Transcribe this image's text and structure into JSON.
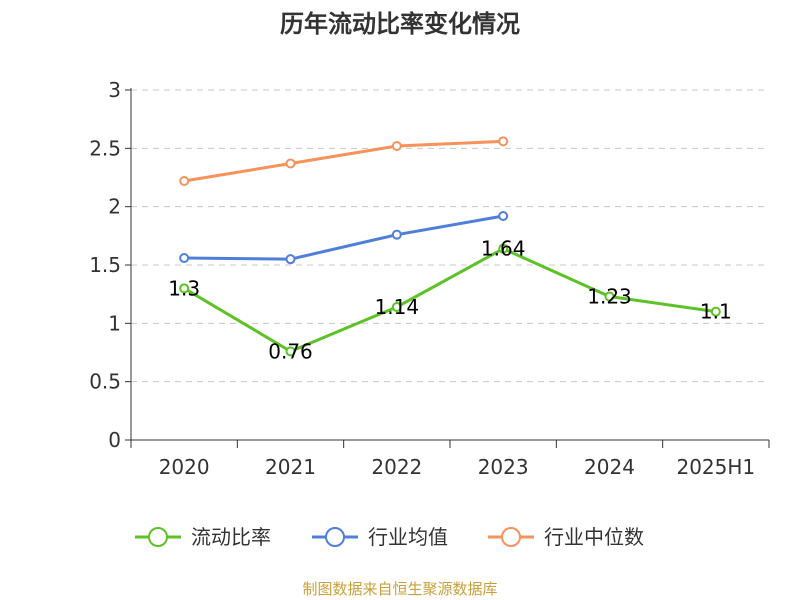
{
  "chart_data": {
    "type": "line",
    "title": "历年流动比率变化情况",
    "categories": [
      "2020",
      "2021",
      "2022",
      "2023",
      "2024",
      "2025H1"
    ],
    "ylim": [
      0,
      3
    ],
    "yticks": [
      "0",
      "0.5",
      "1",
      "1.5",
      "2",
      "2.5",
      "3"
    ],
    "grid": true,
    "legend_position": "bottom",
    "series": [
      {
        "name": "流动比率",
        "color": "#5cc226",
        "values": [
          1.3,
          0.76,
          1.14,
          1.64,
          1.23,
          1.1
        ],
        "data_labels": [
          "1.3",
          "0.76",
          "1.14",
          "1.64",
          "1.23",
          "1.1"
        ]
      },
      {
        "name": "行业均值",
        "color": "#4f7fdb",
        "values": [
          1.56,
          1.55,
          1.76,
          1.92,
          null,
          null
        ]
      },
      {
        "name": "行业中位数",
        "color": "#f7925b",
        "values": [
          2.22,
          2.37,
          2.52,
          2.56,
          null,
          null
        ]
      }
    ]
  },
  "footer": {
    "source": "制图数据来自恒生聚源数据库"
  }
}
